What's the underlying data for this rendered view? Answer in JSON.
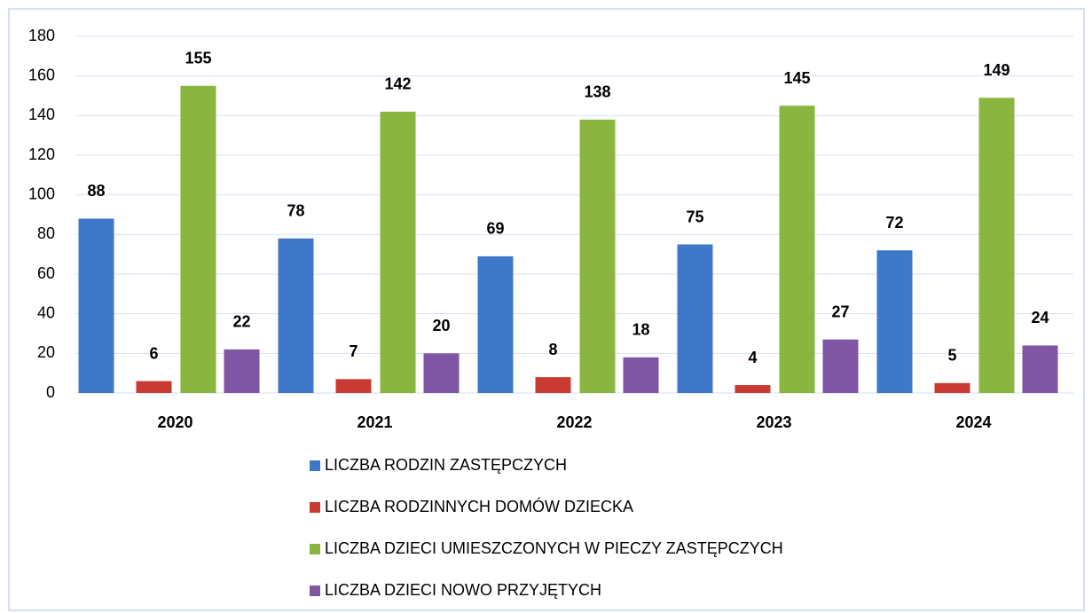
{
  "chart_data": {
    "type": "bar",
    "categories": [
      "2020",
      "2021",
      "2022",
      "2023",
      "2024"
    ],
    "series": [
      {
        "name": "LICZBA RODZIN ZASTĘPCZYCH",
        "color": "#3f78c8",
        "values": [
          88,
          78,
          69,
          75,
          72
        ]
      },
      {
        "name": "LICZBA RODZINNYCH DOMÓW DZIECKA",
        "color": "#c83a32",
        "values": [
          6,
          7,
          8,
          4,
          5
        ]
      },
      {
        "name": "LICZBA DZIECI UMIESZCZONYCH W PIECZY ZASTĘPCZYCH",
        "color": "#8ab53f",
        "values": [
          155,
          142,
          138,
          145,
          149
        ]
      },
      {
        "name": "LICZBA DZIECI NOWO PRZYJĘTYCH",
        "color": "#7f56a3",
        "values": [
          22,
          20,
          18,
          27,
          24
        ]
      }
    ],
    "ylim": [
      0,
      180
    ],
    "yticks": [
      0,
      20,
      40,
      60,
      80,
      100,
      120,
      140,
      160,
      180
    ],
    "grid": true,
    "legend": "bottom"
  }
}
